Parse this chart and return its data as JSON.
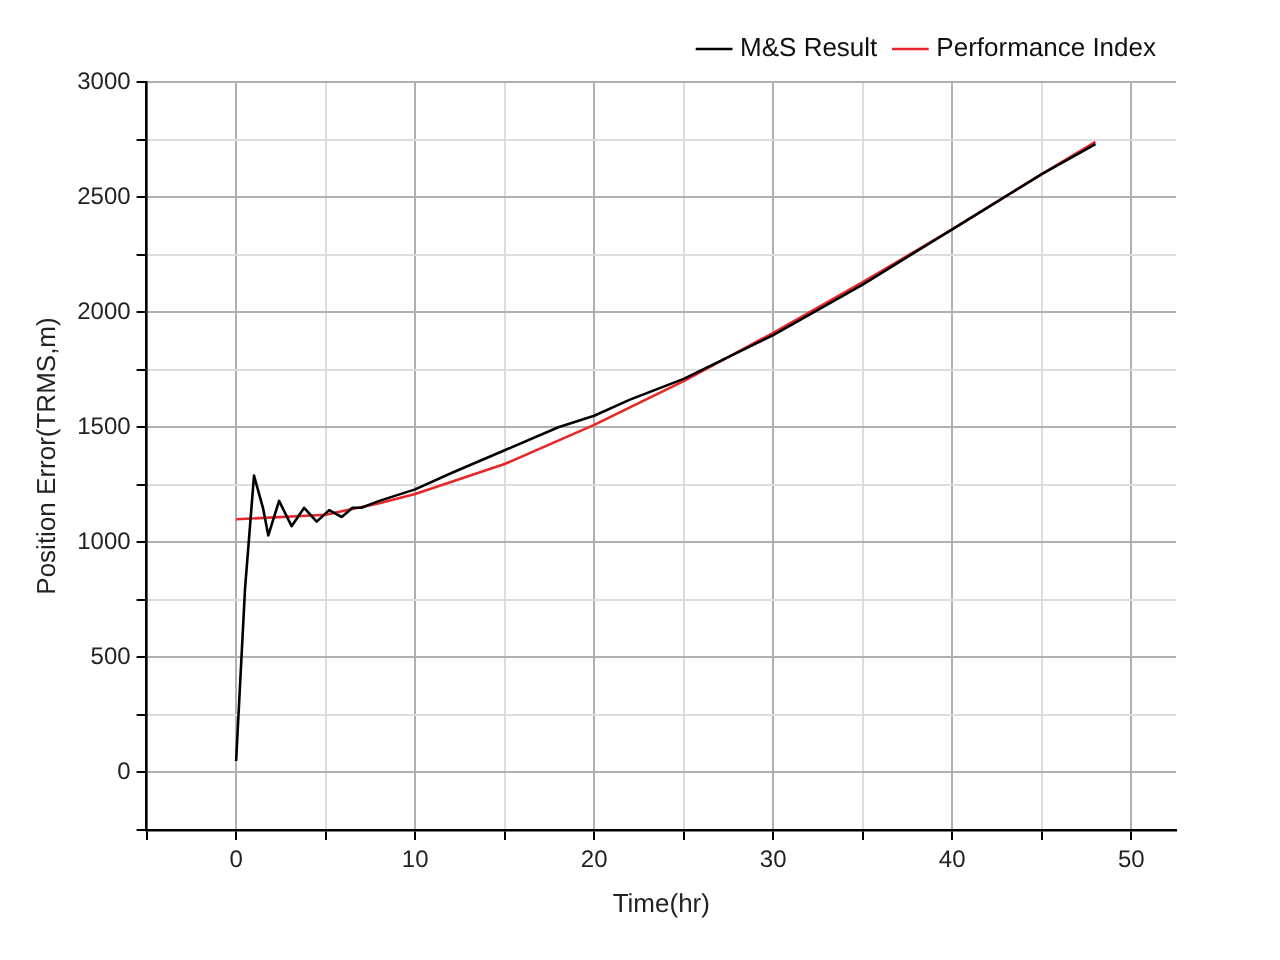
{
  "chart_data": {
    "type": "line",
    "xlabel": "Time(hr)",
    "ylabel": "Position Error(TRMS,m)",
    "xlim": [
      -5,
      52.5
    ],
    "xticks": [
      {
        "value": -5,
        "label": null
      },
      0,
      {
        "value": 5,
        "label": null
      },
      10,
      {
        "value": 15,
        "label": null
      },
      20,
      {
        "value": 25,
        "label": null
      },
      30,
      {
        "value": 35,
        "label": null
      },
      40,
      {
        "value": 45,
        "label": null
      },
      50
    ],
    "ylim": [
      -250,
      3000
    ],
    "yticks": [
      {
        "value": -250,
        "label": null
      },
      0,
      {
        "value": 250,
        "label": null
      },
      500,
      {
        "value": 750,
        "label": null
      },
      1000,
      {
        "value": 1250,
        "label": null
      },
      1500,
      {
        "value": 1750,
        "label": null
      },
      2000,
      {
        "value": 2250,
        "label": null
      },
      2500,
      {
        "value": 2750,
        "label": null
      },
      3000
    ],
    "grid": true,
    "legend": "top right",
    "marker": "none",
    "line_style": "solid",
    "series": [
      {
        "name": "M&S Result",
        "color": "#000000",
        "x": [
          0,
          0.5,
          1,
          1.5,
          1.8,
          2.4,
          3.1,
          3.8,
          4.5,
          5.2,
          5.9,
          6.5,
          7,
          8,
          10,
          12,
          15,
          18,
          20,
          22,
          25,
          30,
          35,
          40,
          45,
          48
        ],
        "values": [
          50,
          800,
          1290,
          1150,
          1030,
          1180,
          1070,
          1150,
          1090,
          1140,
          1110,
          1150,
          1150,
          1180,
          1230,
          1300,
          1400,
          1500,
          1550,
          1620,
          1710,
          1900,
          2120,
          2360,
          2600,
          2730
        ]
      },
      {
        "name": "Performance Index",
        "color": "#e8262a",
        "x": [
          0,
          5,
          8,
          10,
          15,
          20,
          25,
          30,
          35,
          40,
          45,
          48
        ],
        "values": [
          1100,
          1120,
          1170,
          1210,
          1340,
          1510,
          1700,
          1910,
          2130,
          2360,
          2600,
          2740
        ]
      }
    ]
  }
}
